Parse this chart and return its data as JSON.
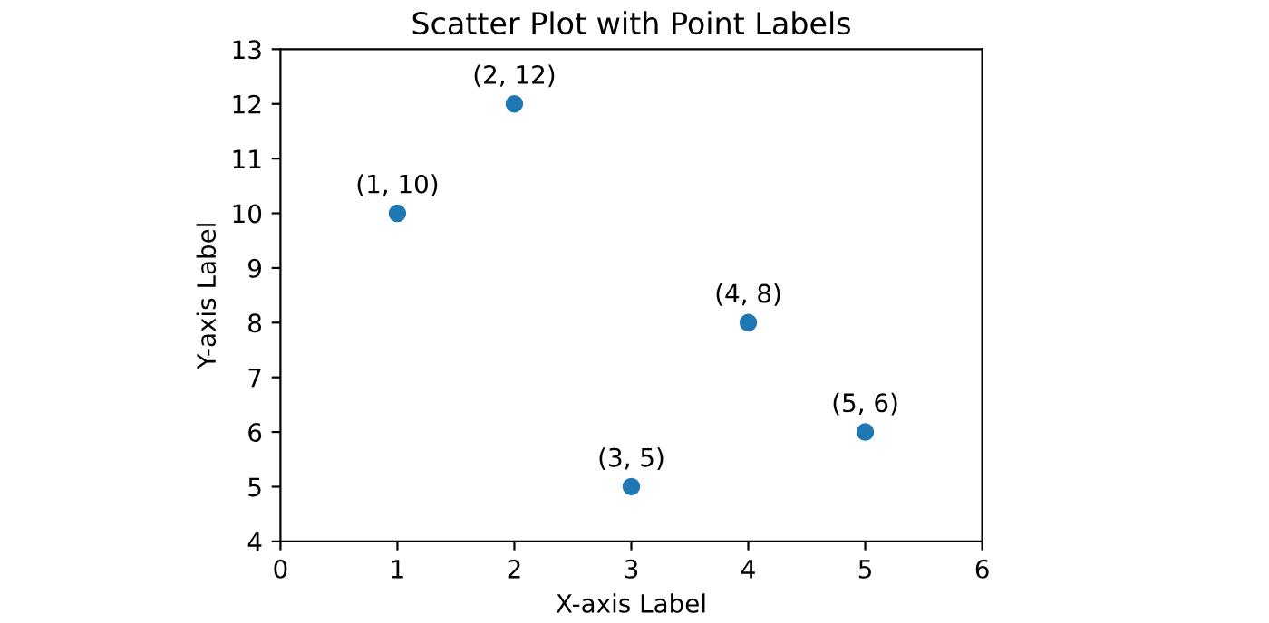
{
  "chart_data": {
    "type": "scatter",
    "title": "Scatter Plot with Point Labels",
    "xlabel": "X-axis Label",
    "ylabel": "Y-axis Label",
    "x": [
      1,
      2,
      3,
      4,
      5
    ],
    "series": [
      {
        "color": "#1f77b4",
        "values": [
          10,
          12,
          5,
          8,
          6
        ],
        "value_labels": [
          "(1, 10)",
          "(2, 12)",
          "(3, 5)",
          "(4, 8)",
          "(5, 6)"
        ]
      }
    ],
    "xlim": [
      0,
      6
    ],
    "xticks": [
      0,
      1,
      2,
      3,
      4,
      5,
      6
    ],
    "ylim": [
      4,
      13
    ],
    "yticks": [
      4,
      5,
      6,
      7,
      8,
      9,
      10,
      11,
      12,
      13
    ],
    "marker": "circle",
    "grid": false
  }
}
